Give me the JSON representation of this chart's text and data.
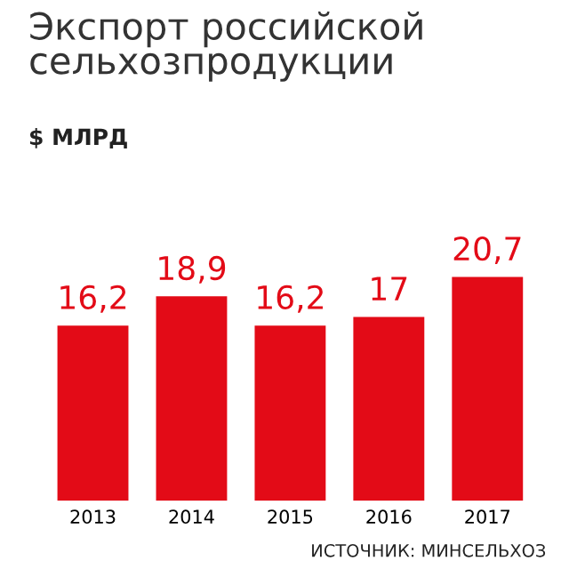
{
  "chart_data": {
    "type": "bar",
    "title": "Экспорт российской\nсельхозпродукции",
    "subtitle": "$ МЛРД",
    "categories": [
      "2013",
      "2014",
      "2015",
      "2016",
      "2017"
    ],
    "values": [
      16.2,
      18.9,
      16.2,
      17,
      20.7
    ],
    "value_labels": [
      "16,2",
      "18,9",
      "16,2",
      "17",
      "20,7"
    ],
    "color": "#e30b17",
    "annotations": [
      "ИСТОЧНИК: МИНСЕЛЬХОЗ"
    ],
    "grid": false
  }
}
